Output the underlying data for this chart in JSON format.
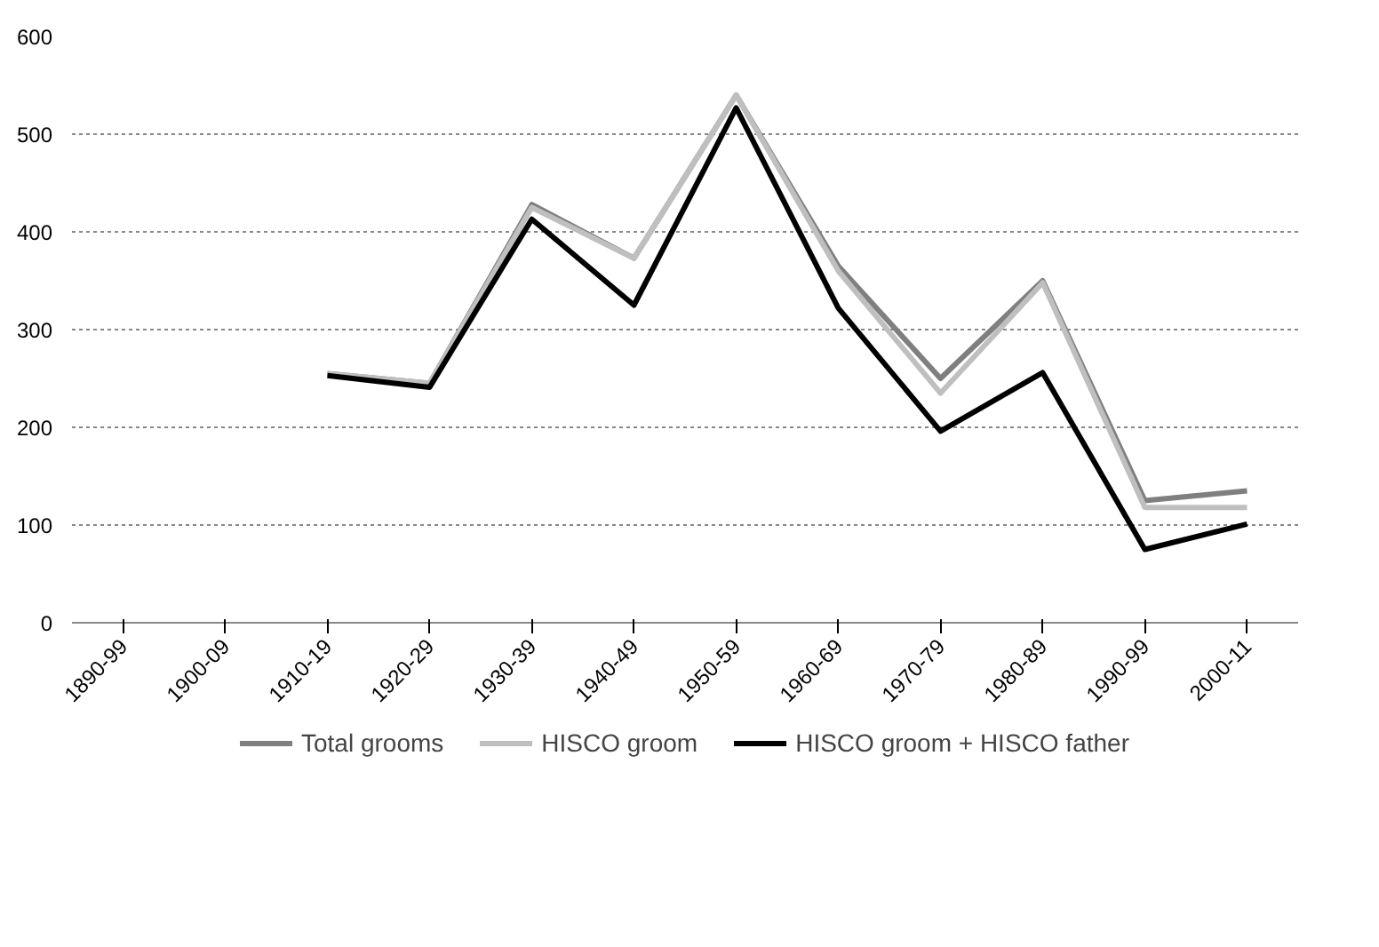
{
  "chart_data": {
    "type": "line",
    "categories": [
      "1890-99",
      "1900-09",
      "1910-19",
      "1920-29",
      "1930-39",
      "1940-49",
      "1950-59",
      "1960-69",
      "1970-79",
      "1980-89",
      "1990-99",
      "2000-11"
    ],
    "series": [
      {
        "name": "Total grooms",
        "color": "#7f7f7f",
        "values": [
          null,
          null,
          255,
          245,
          428,
          373,
          540,
          365,
          250,
          350,
          125,
          135
        ]
      },
      {
        "name": "HISCO groom",
        "color": "#bfbfbf",
        "values": [
          null,
          null,
          255,
          245,
          425,
          373,
          540,
          360,
          235,
          348,
          118,
          118
        ]
      },
      {
        "name": "HISCO groom + HISCO father",
        "color": "#000000",
        "values": [
          null,
          null,
          253,
          241,
          413,
          325,
          527,
          322,
          196,
          256,
          75,
          101
        ]
      }
    ],
    "ylim": [
      0,
      600
    ],
    "yticks": [
      0,
      100,
      200,
      300,
      400,
      500,
      600
    ],
    "grid": "y",
    "legend": "bottom",
    "marker": "none",
    "line_style": "solid"
  }
}
